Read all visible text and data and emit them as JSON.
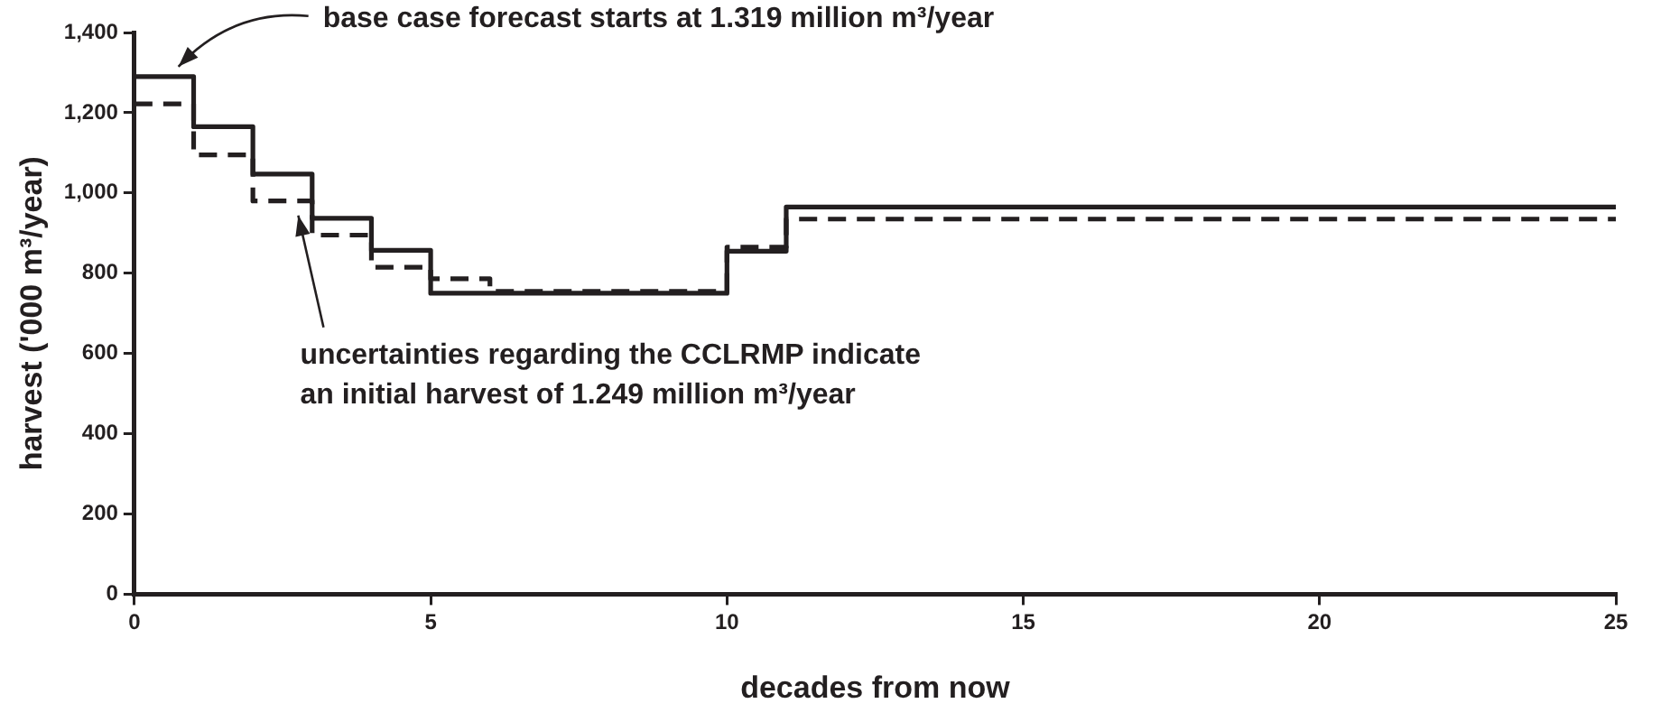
{
  "chart_data": {
    "type": "step",
    "xlabel": "decades from now",
    "ylabel": "harvest ('000 m³/year)",
    "xlim": [
      0,
      25
    ],
    "xticks": [
      0,
      5,
      10,
      15,
      20,
      25
    ],
    "ylim": [
      0,
      1400
    ],
    "yticks": [
      {
        "value": 0,
        "label": "0"
      },
      {
        "value": 200,
        "label": "200"
      },
      {
        "value": 400,
        "label": "400"
      },
      {
        "value": 600,
        "label": "600"
      },
      {
        "value": 800,
        "label": "800"
      },
      {
        "value": 1000,
        "label": "1,000"
      },
      {
        "value": 1200,
        "label": "1,200"
      },
      {
        "value": 1400,
        "label": "1,400"
      }
    ],
    "grid": false,
    "legend": false,
    "marker": "none",
    "series": [
      {
        "color": "#231f20",
        "line_style": "solid",
        "x": [
          0,
          1,
          2,
          3,
          4,
          5,
          10,
          11,
          25
        ],
        "values": [
          1290,
          1165,
          1047,
          937,
          857,
          750,
          855,
          965,
          965
        ]
      },
      {
        "color": "#231f20",
        "line_style": "dashed",
        "x": [
          0,
          1,
          2,
          3,
          4,
          5,
          6,
          10,
          11,
          25
        ],
        "values": [
          1222,
          1095,
          980,
          895,
          815,
          786,
          755,
          865,
          935,
          935
        ]
      }
    ],
    "annotations": [
      "base case forecast starts at 1.319 million m³/year",
      "uncertainties regarding the CCLRMP indicate an initial harvest of 1.249 million m³/year"
    ]
  }
}
